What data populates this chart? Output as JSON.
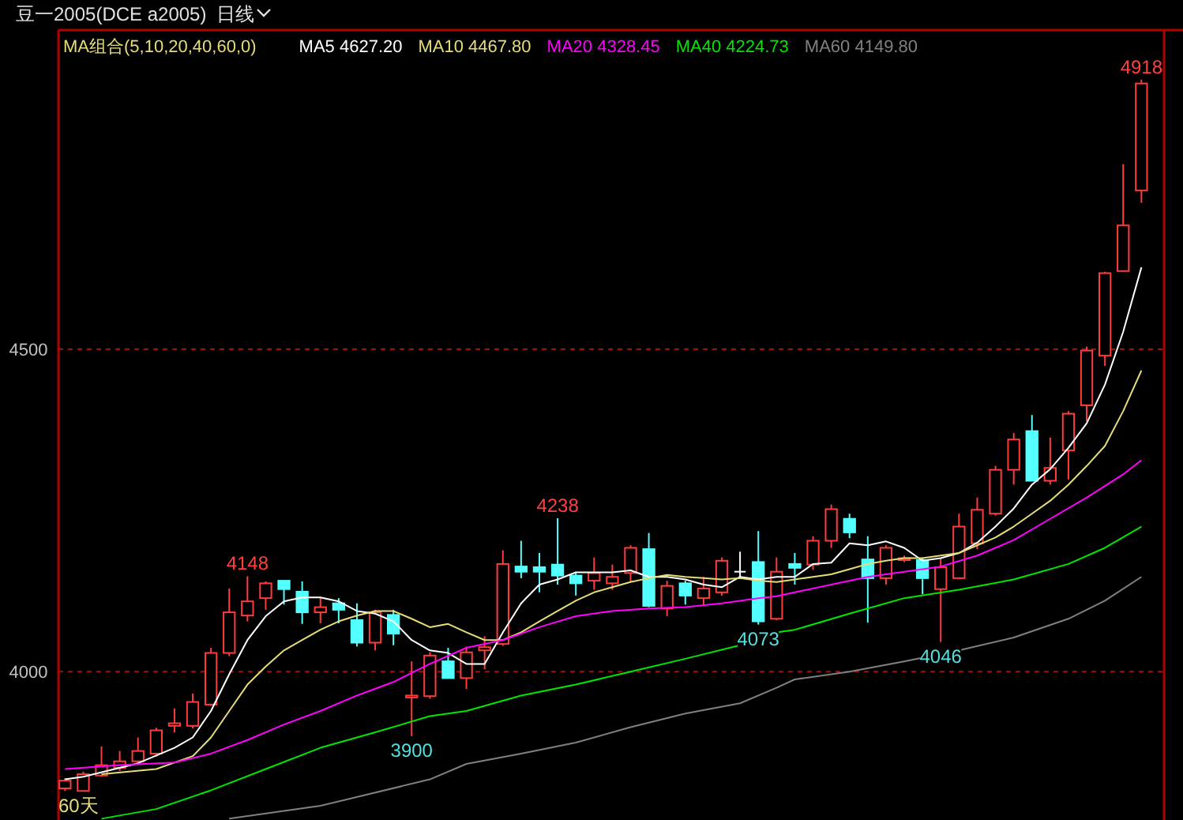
{
  "chart_data": {
    "type": "candlestick",
    "title": "豆一2005(DCE a2005)",
    "subtitle": "日线",
    "legend_title": "MA组合(5,10,20,40,60,0)",
    "legend": "top left",
    "grid": "y",
    "tick_labels": "y",
    "categories": [
      null,
      null,
      null,
      null,
      null,
      null,
      null,
      null,
      null,
      null,
      null,
      null,
      null,
      null,
      null,
      null,
      null,
      null,
      null,
      null,
      null,
      null,
      null,
      null,
      null,
      null,
      null,
      null,
      null,
      null,
      null,
      null,
      null,
      null,
      null,
      null,
      null,
      null,
      null,
      null,
      null,
      null,
      null,
      null,
      null,
      null,
      null,
      null,
      null,
      null,
      null,
      null,
      null,
      null,
      null,
      null,
      null,
      null,
      null,
      null
    ],
    "ylim": [
      3770,
      4990
    ],
    "yticks": [
      4000,
      4500
    ],
    "ohlc": [
      [
        3819,
        3835,
        3815,
        3831
      ],
      [
        3815,
        3845,
        3815,
        3841
      ],
      [
        3839,
        3884,
        3837,
        3855
      ],
      [
        3851,
        3877,
        3846,
        3861
      ],
      [
        3861,
        3898,
        3858,
        3877
      ],
      [
        3873,
        3913,
        3868,
        3909
      ],
      [
        3916,
        3943,
        3906,
        3920
      ],
      [
        3916,
        3966,
        3912,
        3953
      ],
      [
        3949,
        4037,
        3947,
        4029
      ],
      [
        4029,
        4129,
        4024,
        4092
      ],
      [
        4087,
        4148,
        4078,
        4109
      ],
      [
        4114,
        4140,
        4096,
        4137
      ],
      [
        4141,
        4141,
        4104,
        4128
      ],
      [
        4124,
        4140,
        4074,
        4092
      ],
      [
        4092,
        4116,
        4075,
        4100
      ],
      [
        4106,
        4114,
        4075,
        4096
      ],
      [
        4080,
        4106,
        4039,
        4045
      ],
      [
        4045,
        4096,
        4033,
        4092
      ],
      [
        4088,
        4096,
        4041,
        4059
      ],
      [
        3960,
        4016,
        3900,
        3963
      ],
      [
        3962,
        4030,
        3958,
        4025
      ],
      [
        4016,
        4037,
        3990,
        3990
      ],
      [
        3990,
        4039,
        3973,
        4030
      ],
      [
        4033,
        4055,
        4004,
        4038
      ],
      [
        4043,
        4188,
        4040,
        4167
      ],
      [
        4163,
        4203,
        4145,
        4155
      ],
      [
        4162,
        4184,
        4123,
        4155
      ],
      [
        4166,
        4238,
        4135,
        4149
      ],
      [
        4149,
        4155,
        4118,
        4137
      ],
      [
        4141,
        4177,
        4127,
        4153
      ],
      [
        4137,
        4166,
        4127,
        4147
      ],
      [
        4153,
        4196,
        4139,
        4192
      ],
      [
        4190,
        4215,
        4100,
        4102
      ],
      [
        4098,
        4141,
        4086,
        4133
      ],
      [
        4137,
        4141,
        4104,
        4118
      ],
      [
        4114,
        4147,
        4102,
        4129
      ],
      [
        4123,
        4177,
        4118,
        4172
      ],
      [
        4155,
        4186,
        4145,
        4155
      ],
      [
        4170,
        4218,
        4073,
        4078
      ],
      [
        4082,
        4177,
        4080,
        4155
      ],
      [
        4167,
        4184,
        4135,
        4161
      ],
      [
        4166,
        4210,
        4158,
        4203
      ],
      [
        4203,
        4259,
        4192,
        4252
      ],
      [
        4237,
        4245,
        4207,
        4216
      ],
      [
        4174,
        4210,
        4076,
        4145
      ],
      [
        4145,
        4196,
        4135,
        4192
      ],
      [
        4173,
        4180,
        4170,
        4176
      ],
      [
        4173,
        4177,
        4120,
        4145
      ],
      [
        4128,
        4176,
        4046,
        4162
      ],
      [
        4145,
        4245,
        4145,
        4225
      ],
      [
        4199,
        4270,
        4190,
        4251
      ],
      [
        4245,
        4319,
        4242,
        4313
      ],
      [
        4313,
        4370,
        4290,
        4360
      ],
      [
        4373,
        4398,
        4296,
        4296
      ],
      [
        4296,
        4363,
        4290,
        4316
      ],
      [
        4343,
        4404,
        4298,
        4400
      ],
      [
        4413,
        4504,
        4388,
        4498
      ],
      [
        4490,
        4620,
        4474,
        4618
      ],
      [
        4621,
        4787,
        4621,
        4692
      ],
      [
        4746,
        4918,
        4727,
        4912
      ]
    ],
    "series": [
      {
        "name": "MA5 4627.20",
        "color": "#ffffff",
        "type": "line",
        "values": [
          3833,
          3837,
          null,
          null,
          3858,
          null,
          3882,
          3898,
          3939,
          3996,
          4049,
          4086,
          4109,
          4115,
          4115,
          4109,
          4094,
          4090,
          4078,
          4049,
          4033,
          4029,
          4012,
          4012,
          4061,
          4106,
          4135,
          4143,
          4154,
          4154,
          4154,
          4157,
          4147,
          4147,
          4143,
          4135,
          4131,
          4147,
          4143,
          4147,
          4147,
          4167,
          4169,
          4199,
          4196,
          4202,
          4192,
          4172,
          4176,
          4184,
          4200,
          4225,
          4253,
          4290,
          4314,
          4347,
          4385,
          4445,
          4527,
          4627
        ]
      },
      {
        "name": "MA10 4467.80",
        "color": "#e6dc78",
        "type": "line",
        "values": [
          null,
          null,
          3841,
          null,
          null,
          3849,
          null,
          3869,
          3898,
          3939,
          3980,
          4008,
          4033,
          4049,
          4065,
          4078,
          4087,
          4094,
          4094,
          4082,
          4069,
          4074,
          4061,
          4049,
          4049,
          4061,
          4078,
          4094,
          4110,
          4123,
          4131,
          4139,
          4145,
          4150,
          4147,
          4145,
          4143,
          4145,
          4141,
          4139,
          4143,
          4147,
          4151,
          4159,
          4167,
          4172,
          4176,
          4176,
          4180,
          4184,
          4196,
          4208,
          4225,
          4245,
          4265,
          4290,
          4319,
          4350,
          4404,
          4467
        ]
      },
      {
        "name": "MA20 4328.45",
        "color": "#ff00ff",
        "type": "line",
        "values": [
          3849,
          null,
          null,
          3855,
          null,
          null,
          3859,
          null,
          3873,
          null,
          3894,
          null,
          3918,
          null,
          3939,
          null,
          3963,
          null,
          3984,
          null,
          4012,
          null,
          4037,
          null,
          4049,
          null,
          4069,
          null,
          4086,
          null,
          4094,
          null,
          4098,
          null,
          4100,
          null,
          4106,
          null,
          4114,
          4117,
          4123,
          null,
          4135,
          null,
          4147,
          null,
          4155,
          null,
          4163,
          null,
          4180,
          null,
          4204,
          null,
          4237,
          null,
          4270,
          null,
          4306,
          4328
        ]
      },
      {
        "name": "MA40 4224.73",
        "color": "#00e600",
        "type": "line",
        "values": [
          null,
          null,
          3772,
          null,
          null,
          3787,
          null,
          null,
          3816,
          null,
          null,
          3849,
          null,
          null,
          3882,
          null,
          null,
          3906,
          null,
          null,
          3931,
          null,
          3939,
          null,
          null,
          3963,
          null,
          null,
          3980,
          null,
          null,
          4000,
          null,
          null,
          4020,
          null,
          null,
          4041,
          null,
          4061,
          4065,
          null,
          null,
          4090,
          null,
          null,
          4114,
          null,
          null,
          4127,
          null,
          null,
          4143,
          null,
          null,
          4167,
          null,
          4192,
          null,
          4225
        ]
      },
      {
        "name": "MA60 4149.80",
        "color": "#808080",
        "type": "line",
        "values": [
          null,
          null,
          null,
          null,
          null,
          null,
          null,
          null,
          null,
          3772,
          null,
          null,
          null,
          null,
          3792,
          null,
          null,
          null,
          null,
          null,
          3833,
          null,
          3857,
          null,
          null,
          3873,
          null,
          null,
          3890,
          null,
          null,
          3914,
          null,
          null,
          3935,
          null,
          null,
          3951,
          null,
          3975,
          3988,
          null,
          null,
          4000,
          null,
          null,
          4016,
          null,
          null,
          4033,
          null,
          null,
          4053,
          null,
          null,
          4082,
          null,
          4110,
          null,
          4147
        ]
      }
    ],
    "annotations": [
      {
        "text": "4918",
        "y": 4918
      },
      {
        "text": "4238",
        "y": 4238
      },
      {
        "text": "4148",
        "y": 4148
      },
      {
        "text": "3900",
        "y": 3900
      },
      {
        "text": "4073",
        "y": 4073
      },
      {
        "text": "4046",
        "y": 4046
      },
      "60天"
    ]
  }
}
